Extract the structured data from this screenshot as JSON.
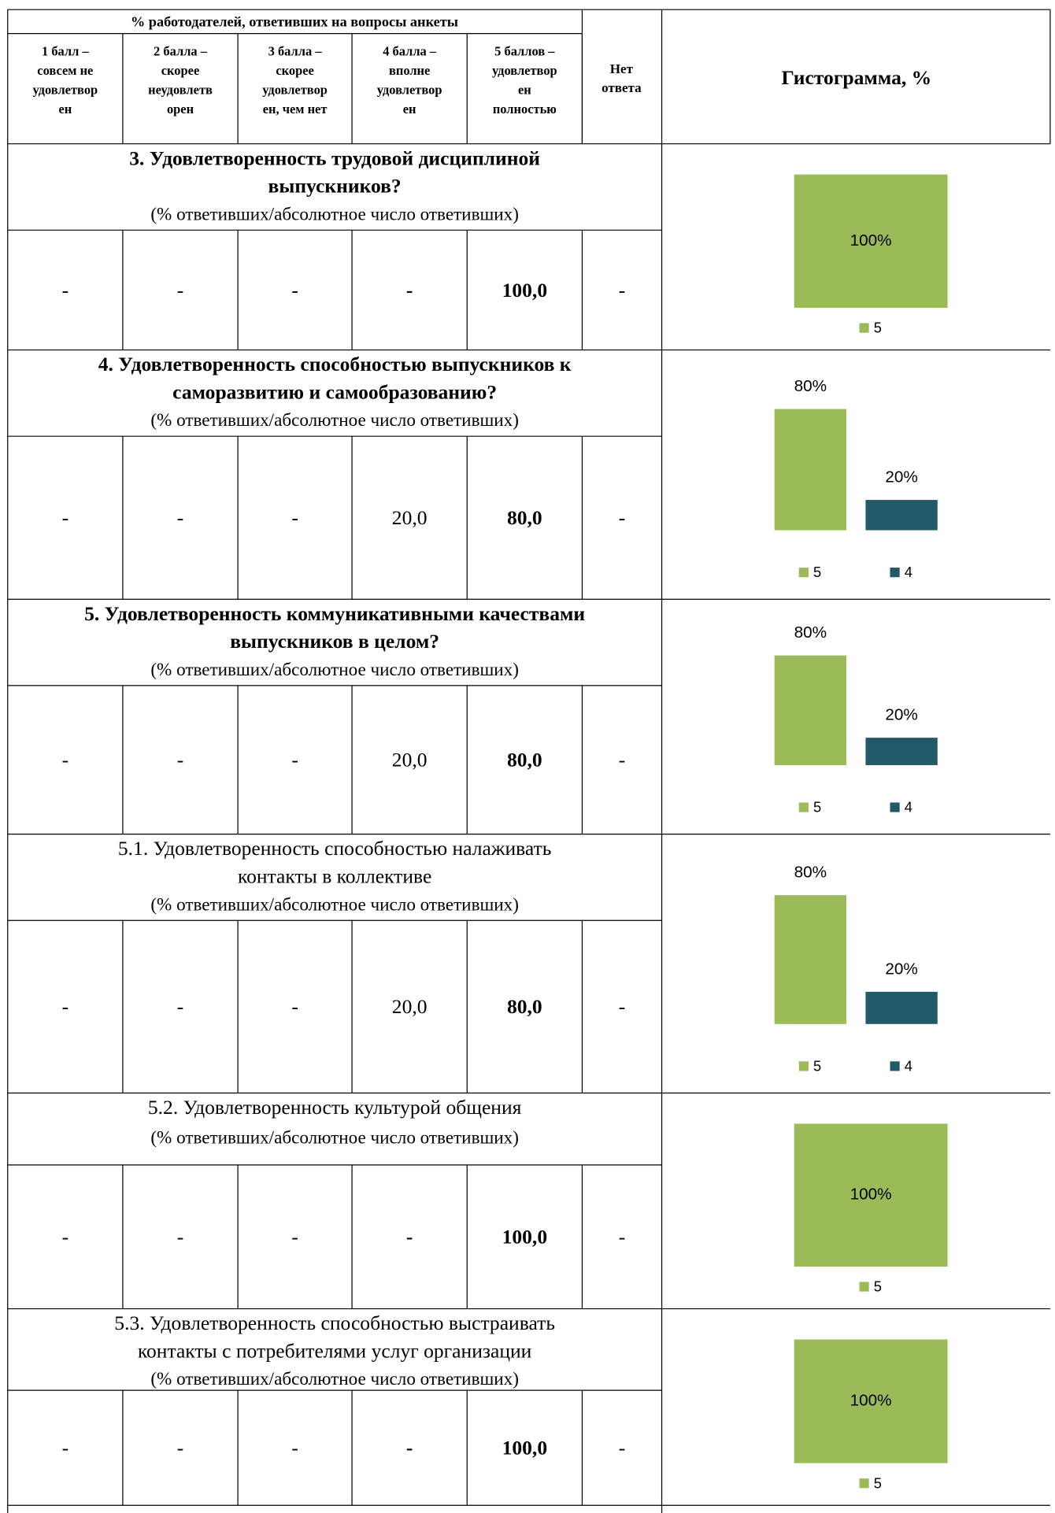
{
  "header": {
    "group_title": "% работодателей, ответивших на вопросы анкеты",
    "columns": [
      [
        "1 балл –",
        "совсем не",
        "удовлетвор",
        "ен"
      ],
      [
        "2 балла –",
        "скорее",
        "неудовлетв",
        "орен"
      ],
      [
        "3 балла –",
        "скорее",
        "удовлетвор",
        "ен, чем нет"
      ],
      [
        "4 балла –",
        "вполне",
        "удовлетвор",
        "ен"
      ],
      [
        "5 баллов –",
        "удовлетвор",
        "ен",
        "полностью"
      ]
    ],
    "no_answer": [
      "Нет",
      "ответа"
    ],
    "histogram": "Гистограмма, %"
  },
  "sections": [
    {
      "title_lines": [
        "3. Удовлетворенность трудовой дисциплиной",
        "выпускников?"
      ],
      "title_bold": true,
      "subtitle": "(% ответивших/абсолютное число ответивших)",
      "cells": [
        "-",
        "-",
        "-",
        "-",
        "100,0",
        "-"
      ],
      "bold": [
        false,
        false,
        false,
        true,
        true,
        false
      ],
      "chart": {
        "type": "bar",
        "categories": [
          "5"
        ],
        "values": [
          100
        ],
        "value_labels": [
          "100%"
        ],
        "colors": [
          "#9bbb59"
        ],
        "ylim": [
          0,
          100
        ]
      }
    },
    {
      "title_lines": [
        "4. Удовлетворенность способностью выпускников к",
        "саморазвитию и самообразованию?"
      ],
      "title_bold": true,
      "subtitle": "(% ответивших/абсолютное число ответивших)",
      "cells": [
        "-",
        "-",
        "-",
        "20,0",
        "80,0",
        "-"
      ],
      "bold": [
        false,
        false,
        false,
        false,
        true,
        false
      ],
      "chart": {
        "type": "bar",
        "categories": [
          "5",
          "4"
        ],
        "values": [
          80,
          20
        ],
        "value_labels": [
          "80%",
          "20%"
        ],
        "colors": [
          "#9bbb59",
          "#215968"
        ],
        "ylim": [
          0,
          100
        ]
      }
    },
    {
      "title_lines": [
        "5. Удовлетворенность коммуникативными качествами",
        "выпускников в целом?"
      ],
      "title_bold": true,
      "subtitle": "(% ответивших/абсолютное число ответивших)",
      "cells": [
        "-",
        "-",
        "-",
        "20,0",
        "80,0",
        "-"
      ],
      "bold": [
        false,
        false,
        false,
        false,
        true,
        false
      ],
      "chart": {
        "type": "bar",
        "categories": [
          "5",
          "4"
        ],
        "values": [
          80,
          20
        ],
        "value_labels": [
          "80%",
          "20%"
        ],
        "colors": [
          "#9bbb59",
          "#215968"
        ],
        "ylim": [
          0,
          100
        ]
      }
    },
    {
      "title_lines": [
        "5.1. Удовлетворенность способностью налаживать",
        "контакты в коллективе"
      ],
      "title_bold": false,
      "subtitle": "(% ответивших/абсолютное число ответивших)",
      "cells": [
        "-",
        "-",
        "-",
        "20,0",
        "80,0",
        "-"
      ],
      "bold": [
        false,
        false,
        false,
        false,
        true,
        false
      ],
      "chart": {
        "type": "bar",
        "categories": [
          "5",
          "4"
        ],
        "values": [
          80,
          20
        ],
        "value_labels": [
          "80%",
          "20%"
        ],
        "colors": [
          "#9bbb59",
          "#215968"
        ],
        "ylim": [
          0,
          100
        ]
      }
    },
    {
      "title_lines": [
        "5.2. Удовлетворенность культурой общения"
      ],
      "title_bold": false,
      "subtitle": "(% ответивших/абсолютное число ответивших)",
      "cells": [
        "-",
        "-",
        "-",
        "-",
        "100,0",
        "-"
      ],
      "bold": [
        false,
        false,
        false,
        true,
        true,
        false
      ],
      "chart": {
        "type": "bar",
        "categories": [
          "5"
        ],
        "values": [
          100
        ],
        "value_labels": [
          "100%"
        ],
        "colors": [
          "#9bbb59"
        ],
        "ylim": [
          0,
          100
        ]
      }
    },
    {
      "title_lines": [
        "5.3. Удовлетворенность способностью выстраивать",
        "контакты с потребителями услуг организации"
      ],
      "title_bold": false,
      "subtitle": "(% ответивших/абсолютное число ответивших)",
      "cells": [
        "-",
        "-",
        "-",
        "-",
        "100,0",
        "-"
      ],
      "bold": [
        false,
        false,
        false,
        true,
        true,
        false
      ],
      "chart": {
        "type": "bar",
        "categories": [
          "5"
        ],
        "values": [
          100
        ],
        "value_labels": [
          "100%"
        ],
        "colors": [
          "#9bbb59"
        ],
        "ylim": [
          0,
          100
        ]
      }
    }
  ]
}
